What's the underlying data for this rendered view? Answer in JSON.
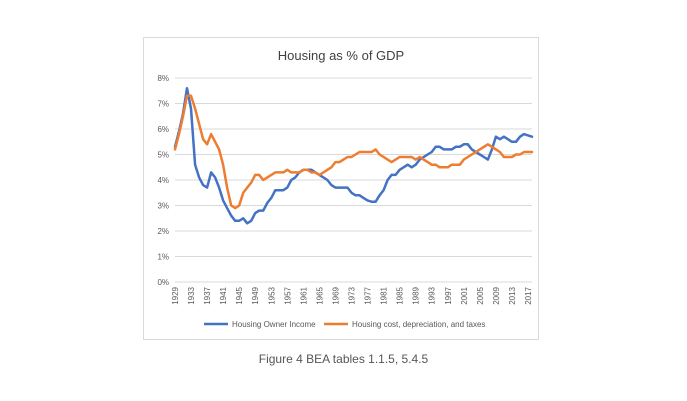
{
  "caption": "Figure 4 BEA tables 1.1.5, 5.4.5",
  "chart_data": {
    "type": "line",
    "title": "Housing as % of GDP",
    "xlabel": "",
    "ylabel": "",
    "ylim": [
      0,
      8
    ],
    "yticks": [
      "0%",
      "1%",
      "2%",
      "3%",
      "4%",
      "5%",
      "6%",
      "7%",
      "8%"
    ],
    "xlim": [
      1929,
      2018
    ],
    "xticks": [
      "1929",
      "1933",
      "1937",
      "1941",
      "1945",
      "1949",
      "1953",
      "1957",
      "1961",
      "1965",
      "1969",
      "1973",
      "1977",
      "1981",
      "1985",
      "1989",
      "1993",
      "1997",
      "2001",
      "2005",
      "2009",
      "2013",
      "2017"
    ],
    "grid": "horizontal",
    "legend": "bottom",
    "series": [
      {
        "name": "Housing Owner Income",
        "color": "#4472c4",
        "points": [
          [
            1929,
            5.3
          ],
          [
            1930,
            5.9
          ],
          [
            1931,
            6.6
          ],
          [
            1932,
            7.6
          ],
          [
            1933,
            6.8
          ],
          [
            1934,
            4.6
          ],
          [
            1935,
            4.1
          ],
          [
            1936,
            3.8
          ],
          [
            1937,
            3.7
          ],
          [
            1938,
            4.3
          ],
          [
            1939,
            4.1
          ],
          [
            1940,
            3.7
          ],
          [
            1941,
            3.2
          ],
          [
            1942,
            2.9
          ],
          [
            1943,
            2.6
          ],
          [
            1944,
            2.4
          ],
          [
            1945,
            2.4
          ],
          [
            1946,
            2.5
          ],
          [
            1947,
            2.3
          ],
          [
            1948,
            2.4
          ],
          [
            1949,
            2.7
          ],
          [
            1950,
            2.8
          ],
          [
            1951,
            2.8
          ],
          [
            1952,
            3.1
          ],
          [
            1953,
            3.3
          ],
          [
            1954,
            3.6
          ],
          [
            1955,
            3.6
          ],
          [
            1956,
            3.6
          ],
          [
            1957,
            3.7
          ],
          [
            1958,
            4.0
          ],
          [
            1959,
            4.1
          ],
          [
            1960,
            4.3
          ],
          [
            1961,
            4.4
          ],
          [
            1962,
            4.4
          ],
          [
            1963,
            4.4
          ],
          [
            1964,
            4.3
          ],
          [
            1965,
            4.2
          ],
          [
            1966,
            4.1
          ],
          [
            1967,
            4.0
          ],
          [
            1968,
            3.8
          ],
          [
            1969,
            3.7
          ],
          [
            1970,
            3.7
          ],
          [
            1971,
            3.7
          ],
          [
            1972,
            3.7
          ],
          [
            1973,
            3.5
          ],
          [
            1974,
            3.4
          ],
          [
            1975,
            3.4
          ],
          [
            1976,
            3.3
          ],
          [
            1977,
            3.2
          ],
          [
            1978,
            3.15
          ],
          [
            1979,
            3.15
          ],
          [
            1980,
            3.4
          ],
          [
            1981,
            3.6
          ],
          [
            1982,
            4.0
          ],
          [
            1983,
            4.2
          ],
          [
            1984,
            4.2
          ],
          [
            1985,
            4.4
          ],
          [
            1986,
            4.5
          ],
          [
            1987,
            4.6
          ],
          [
            1988,
            4.5
          ],
          [
            1989,
            4.6
          ],
          [
            1990,
            4.8
          ],
          [
            1991,
            4.9
          ],
          [
            1992,
            5.0
          ],
          [
            1993,
            5.1
          ],
          [
            1994,
            5.3
          ],
          [
            1995,
            5.3
          ],
          [
            1996,
            5.2
          ],
          [
            1997,
            5.2
          ],
          [
            1998,
            5.2
          ],
          [
            1999,
            5.3
          ],
          [
            2000,
            5.3
          ],
          [
            2001,
            5.4
          ],
          [
            2002,
            5.4
          ],
          [
            2003,
            5.2
          ],
          [
            2004,
            5.1
          ],
          [
            2005,
            5.0
          ],
          [
            2006,
            4.9
          ],
          [
            2007,
            4.8
          ],
          [
            2008,
            5.2
          ],
          [
            2009,
            5.7
          ],
          [
            2010,
            5.6
          ],
          [
            2011,
            5.7
          ],
          [
            2012,
            5.6
          ],
          [
            2013,
            5.5
          ],
          [
            2014,
            5.5
          ],
          [
            2015,
            5.7
          ],
          [
            2016,
            5.8
          ],
          [
            2017,
            5.75
          ],
          [
            2018,
            5.7
          ]
        ]
      },
      {
        "name": "Housing cost, depreciation, and taxes",
        "color": "#ed7d31",
        "points": [
          [
            1929,
            5.2
          ],
          [
            1930,
            5.8
          ],
          [
            1931,
            6.5
          ],
          [
            1932,
            7.3
          ],
          [
            1933,
            7.3
          ],
          [
            1934,
            6.8
          ],
          [
            1935,
            6.2
          ],
          [
            1936,
            5.6
          ],
          [
            1937,
            5.4
          ],
          [
            1938,
            5.8
          ],
          [
            1939,
            5.5
          ],
          [
            1940,
            5.2
          ],
          [
            1941,
            4.6
          ],
          [
            1942,
            3.7
          ],
          [
            1943,
            3.0
          ],
          [
            1944,
            2.9
          ],
          [
            1945,
            3.0
          ],
          [
            1946,
            3.5
          ],
          [
            1947,
            3.7
          ],
          [
            1948,
            3.9
          ],
          [
            1949,
            4.2
          ],
          [
            1950,
            4.2
          ],
          [
            1951,
            4.0
          ],
          [
            1952,
            4.1
          ],
          [
            1953,
            4.2
          ],
          [
            1954,
            4.3
          ],
          [
            1955,
            4.3
          ],
          [
            1956,
            4.3
          ],
          [
            1957,
            4.4
          ],
          [
            1958,
            4.3
          ],
          [
            1959,
            4.3
          ],
          [
            1960,
            4.3
          ],
          [
            1961,
            4.4
          ],
          [
            1962,
            4.4
          ],
          [
            1963,
            4.3
          ],
          [
            1964,
            4.3
          ],
          [
            1965,
            4.2
          ],
          [
            1966,
            4.3
          ],
          [
            1967,
            4.4
          ],
          [
            1968,
            4.5
          ],
          [
            1969,
            4.7
          ],
          [
            1970,
            4.7
          ],
          [
            1971,
            4.8
          ],
          [
            1972,
            4.9
          ],
          [
            1973,
            4.9
          ],
          [
            1974,
            5.0
          ],
          [
            1975,
            5.1
          ],
          [
            1976,
            5.1
          ],
          [
            1977,
            5.1
          ],
          [
            1978,
            5.1
          ],
          [
            1979,
            5.2
          ],
          [
            1980,
            5.0
          ],
          [
            1981,
            4.9
          ],
          [
            1982,
            4.8
          ],
          [
            1983,
            4.7
          ],
          [
            1984,
            4.8
          ],
          [
            1985,
            4.9
          ],
          [
            1986,
            4.9
          ],
          [
            1987,
            4.9
          ],
          [
            1988,
            4.9
          ],
          [
            1989,
            4.8
          ],
          [
            1990,
            4.9
          ],
          [
            1991,
            4.8
          ],
          [
            1992,
            4.7
          ],
          [
            1993,
            4.6
          ],
          [
            1994,
            4.6
          ],
          [
            1995,
            4.5
          ],
          [
            1996,
            4.5
          ],
          [
            1997,
            4.5
          ],
          [
            1998,
            4.6
          ],
          [
            1999,
            4.6
          ],
          [
            2000,
            4.6
          ],
          [
            2001,
            4.8
          ],
          [
            2002,
            4.9
          ],
          [
            2003,
            5.0
          ],
          [
            2004,
            5.1
          ],
          [
            2005,
            5.2
          ],
          [
            2006,
            5.3
          ],
          [
            2007,
            5.4
          ],
          [
            2008,
            5.3
          ],
          [
            2009,
            5.2
          ],
          [
            2010,
            5.1
          ],
          [
            2011,
            4.9
          ],
          [
            2012,
            4.9
          ],
          [
            2013,
            4.9
          ],
          [
            2014,
            5.0
          ],
          [
            2015,
            5.0
          ],
          [
            2016,
            5.1
          ],
          [
            2017,
            5.1
          ],
          [
            2018,
            5.1
          ]
        ]
      }
    ]
  }
}
